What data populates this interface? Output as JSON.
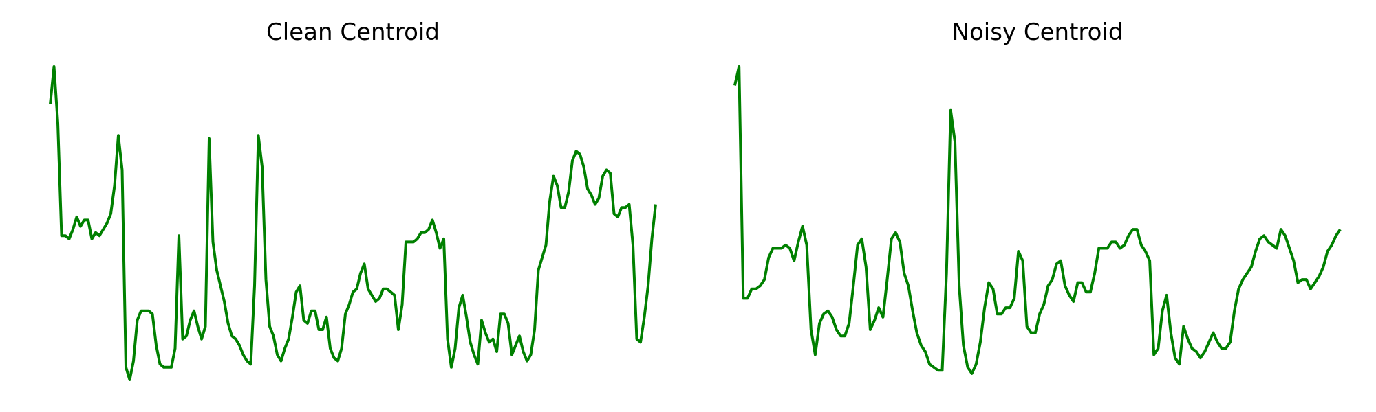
{
  "chart_data": [
    {
      "type": "line",
      "title": "Clean Centroid",
      "xlabel": "",
      "ylabel": "",
      "axes_visible": false,
      "grid": false,
      "xlim": [
        0,
        139
      ],
      "ylim": [
        0,
        1
      ],
      "series": [
        {
          "color": "#008000",
          "values": [
            0.88,
            1.0,
            0.82,
            0.46,
            0.46,
            0.45,
            0.48,
            0.52,
            0.49,
            0.51,
            0.51,
            0.45,
            0.47,
            0.46,
            0.48,
            0.5,
            0.53,
            0.62,
            0.78,
            0.67,
            0.04,
            0.0,
            0.06,
            0.19,
            0.22,
            0.22,
            0.22,
            0.21,
            0.11,
            0.05,
            0.04,
            0.04,
            0.04,
            0.1,
            0.46,
            0.13,
            0.14,
            0.19,
            0.22,
            0.17,
            0.13,
            0.17,
            0.77,
            0.44,
            0.35,
            0.3,
            0.25,
            0.18,
            0.14,
            0.13,
            0.11,
            0.08,
            0.06,
            0.05,
            0.3,
            0.78,
            0.68,
            0.32,
            0.17,
            0.14,
            0.08,
            0.06,
            0.1,
            0.13,
            0.2,
            0.28,
            0.3,
            0.19,
            0.18,
            0.22,
            0.22,
            0.16,
            0.16,
            0.2,
            0.1,
            0.07,
            0.06,
            0.1,
            0.21,
            0.24,
            0.28,
            0.29,
            0.34,
            0.37,
            0.29,
            0.27,
            0.25,
            0.26,
            0.29,
            0.29,
            0.28,
            0.27,
            0.16,
            0.24,
            0.44,
            0.44,
            0.44,
            0.45,
            0.47,
            0.47,
            0.48,
            0.51,
            0.47,
            0.42,
            0.45,
            0.13,
            0.04,
            0.1,
            0.23,
            0.27,
            0.2,
            0.12,
            0.08,
            0.05,
            0.19,
            0.15,
            0.12,
            0.13,
            0.09,
            0.21,
            0.21,
            0.18,
            0.08,
            0.11,
            0.14,
            0.09,
            0.06,
            0.08,
            0.16,
            0.35,
            0.39,
            0.43,
            0.57,
            0.65,
            0.62,
            0.55,
            0.55,
            0.6,
            0.7,
            0.73,
            0.72,
            0.68,
            0.61,
            0.59,
            0.56,
            0.58,
            0.65,
            0.67,
            0.66,
            0.53,
            0.52,
            0.55,
            0.55,
            0.56,
            0.43,
            0.13,
            0.12,
            0.2,
            0.3,
            0.45,
            0.56
          ]
        }
      ]
    },
    {
      "type": "line",
      "title": "Noisy Centroid",
      "xlabel": "",
      "ylabel": "",
      "axes_visible": false,
      "grid": false,
      "xlim": [
        0,
        139
      ],
      "ylim": [
        0,
        1
      ],
      "series": [
        {
          "color": "#008000",
          "values": [
            0.94,
            1.0,
            0.26,
            0.26,
            0.29,
            0.29,
            0.3,
            0.32,
            0.39,
            0.42,
            0.42,
            0.42,
            0.43,
            0.42,
            0.38,
            0.44,
            0.49,
            0.43,
            0.16,
            0.08,
            0.18,
            0.21,
            0.22,
            0.2,
            0.16,
            0.14,
            0.14,
            0.18,
            0.3,
            0.43,
            0.45,
            0.36,
            0.16,
            0.19,
            0.23,
            0.2,
            0.32,
            0.45,
            0.47,
            0.44,
            0.34,
            0.3,
            0.22,
            0.15,
            0.11,
            0.09,
            0.05,
            0.04,
            0.03,
            0.03,
            0.34,
            0.86,
            0.76,
            0.3,
            0.11,
            0.04,
            0.02,
            0.05,
            0.12,
            0.23,
            0.31,
            0.29,
            0.21,
            0.21,
            0.23,
            0.23,
            0.26,
            0.41,
            0.38,
            0.17,
            0.15,
            0.15,
            0.21,
            0.24,
            0.3,
            0.32,
            0.37,
            0.38,
            0.3,
            0.27,
            0.25,
            0.31,
            0.31,
            0.28,
            0.28,
            0.34,
            0.42,
            0.42,
            0.42,
            0.44,
            0.44,
            0.42,
            0.43,
            0.46,
            0.48,
            0.48,
            0.43,
            0.41,
            0.38,
            0.08,
            0.1,
            0.22,
            0.27,
            0.15,
            0.07,
            0.05,
            0.17,
            0.13,
            0.1,
            0.09,
            0.07,
            0.09,
            0.12,
            0.15,
            0.12,
            0.1,
            0.1,
            0.12,
            0.22,
            0.29,
            0.32,
            0.34,
            0.36,
            0.41,
            0.45,
            0.46,
            0.44,
            0.43,
            0.42,
            0.48,
            0.46,
            0.42,
            0.38,
            0.31,
            0.32,
            0.32,
            0.29,
            0.31,
            0.33,
            0.36,
            0.41,
            0.43,
            0.46,
            0.48
          ]
        }
      ]
    }
  ]
}
